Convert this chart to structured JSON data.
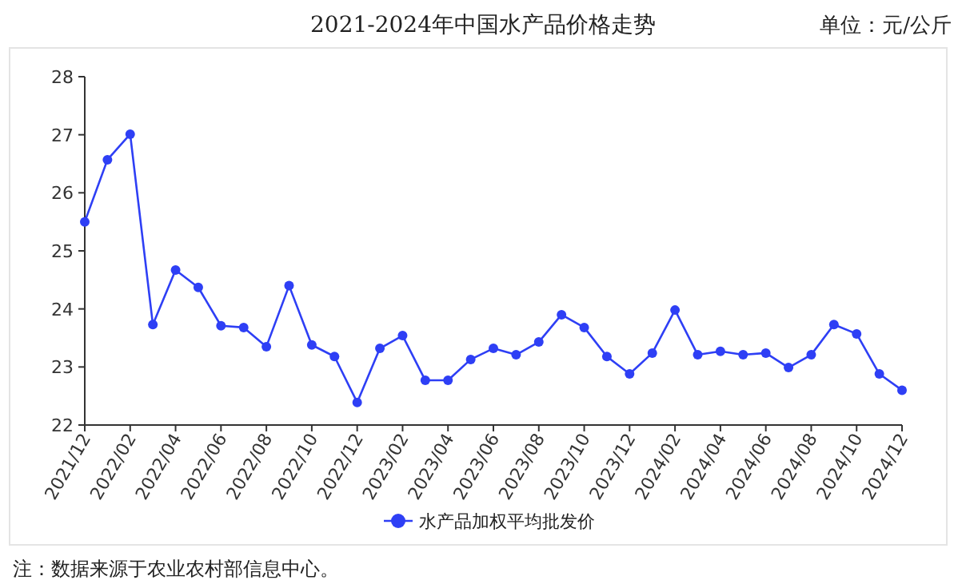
{
  "chart_data": {
    "type": "line",
    "title": "2021-2024年中国水产品价格走势",
    "categories": [
      "2021/12",
      null,
      "2022/02",
      null,
      "2022/04",
      null,
      "2022/06",
      null,
      "2022/08",
      null,
      "2022/10",
      null,
      "2022/12",
      null,
      "2023/02",
      null,
      "2023/04",
      null,
      "2023/06",
      null,
      "2023/08",
      null,
      "2023/10",
      null,
      "2023/12",
      null,
      "2024/02",
      null,
      "2024/04",
      null,
      "2024/06",
      null,
      "2024/08",
      null,
      "2024/10",
      null,
      "2024/12"
    ],
    "series": [
      {
        "name": "水产品加权平均批发价",
        "color": "#2e3ff5",
        "values": [
          25.5,
          26.57,
          27.01,
          23.73,
          24.67,
          24.37,
          23.71,
          23.68,
          23.35,
          24.4,
          23.38,
          23.18,
          22.39,
          23.32,
          23.54,
          22.77,
          22.77,
          23.13,
          23.32,
          23.21,
          23.43,
          23.9,
          23.68,
          23.18,
          22.88,
          23.24,
          23.98,
          23.21,
          23.27,
          23.21,
          23.24,
          22.99,
          23.21,
          23.73,
          23.57,
          22.88,
          22.6
        ]
      }
    ],
    "ylim": [
      22,
      28
    ],
    "yticks": [
      22,
      23,
      24,
      25,
      26,
      27,
      28
    ],
    "annotations": [
      "单位：元/公斤",
      "注：数据来源于农业农村部信息中心。"
    ],
    "legend": "bottom",
    "marker": "circle",
    "line_style": "solid",
    "grid": false
  }
}
